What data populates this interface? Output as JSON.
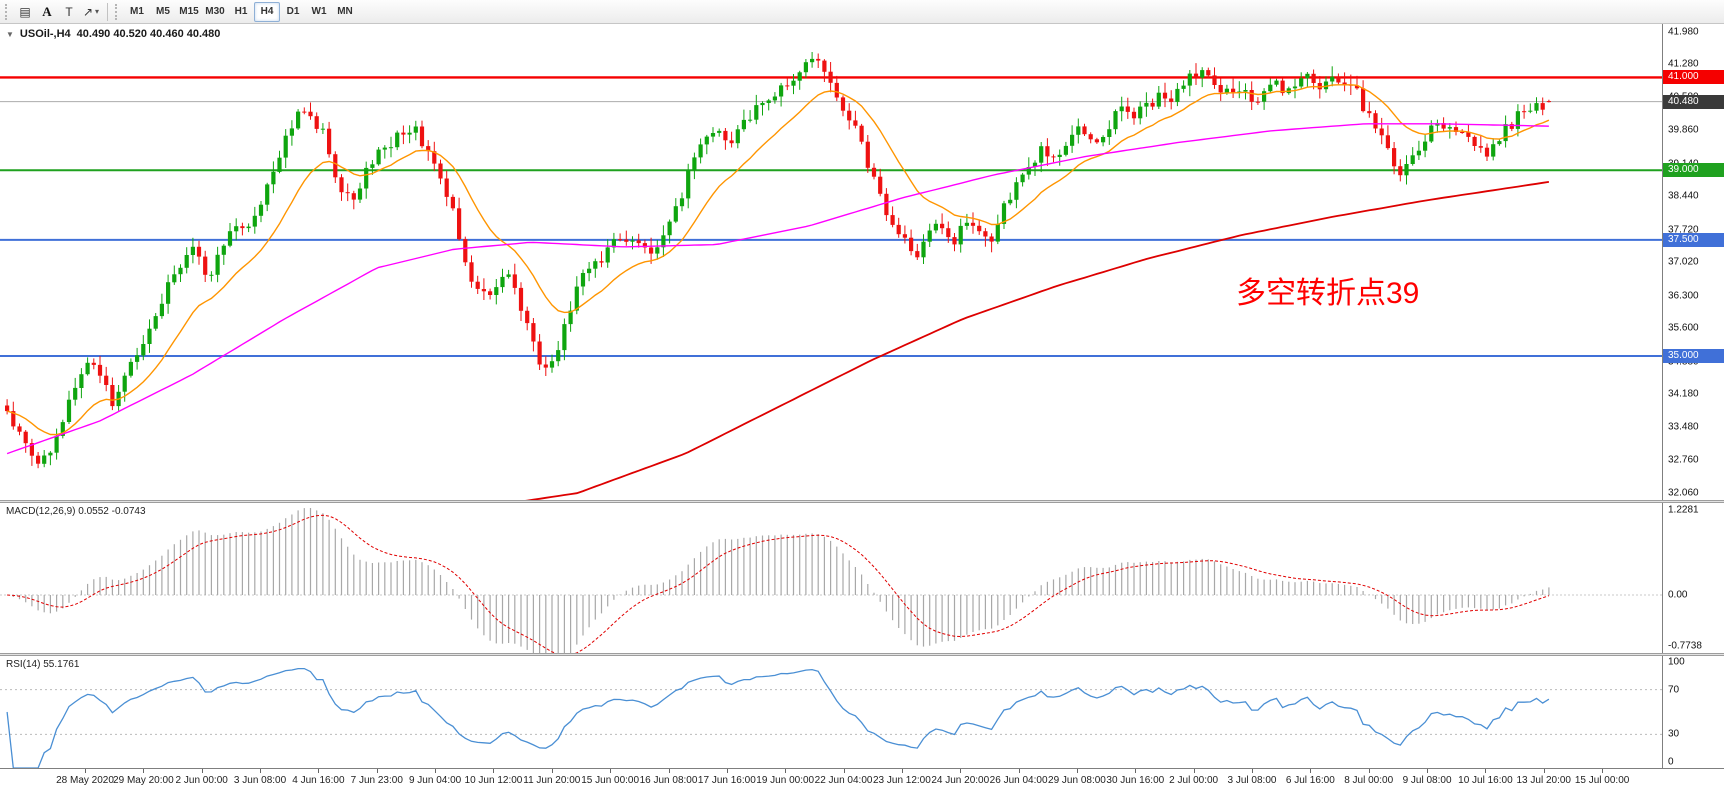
{
  "toolbar": {
    "tools": [
      {
        "name": "charts-icon",
        "glyph": "▤"
      },
      {
        "name": "text-label-icon",
        "glyph": "A"
      },
      {
        "name": "text-icon",
        "glyph": "T"
      },
      {
        "name": "arrow-tool-icon",
        "glyph": "↗"
      }
    ],
    "dropdown_caret": "▾",
    "timeframes": [
      "M1",
      "M5",
      "M15",
      "M30",
      "H1",
      "H4",
      "D1",
      "W1",
      "MN"
    ],
    "active_timeframe": "H4"
  },
  "chart": {
    "collapse_arrow": "▼",
    "symbol_title": "USOil-,H4",
    "ohlc": "40.490 40.520 40.460 40.480",
    "annotation": "多空转折点39",
    "annotation_color": "#FF0000",
    "y_ticks": [
      "41.980",
      "41.280",
      "40.580",
      "39.860",
      "39.140",
      "38.440",
      "37.720",
      "37.020",
      "36.300",
      "35.600",
      "34.880",
      "34.180",
      "33.480",
      "32.760",
      "32.060"
    ],
    "price_tags": [
      {
        "label": "41.000",
        "color": "#F50000"
      },
      {
        "label": "40.480",
        "color": "#3A3A3A"
      },
      {
        "label": "39.000",
        "color": "#1FA11F"
      },
      {
        "label": "37.500",
        "color": "#4070D8"
      },
      {
        "label": "35.000",
        "color": "#4070D8"
      }
    ],
    "hlines": [
      {
        "price": 41.0,
        "color": "#F50000",
        "width": 2.4
      },
      {
        "price": 39.0,
        "color": "#1FA11F",
        "width": 2
      },
      {
        "price": 37.5,
        "color": "#4070D8",
        "width": 2
      },
      {
        "price": 35.0,
        "color": "#4070D8",
        "width": 2
      }
    ],
    "bid_line": {
      "price": 40.48,
      "color": "#ABABAB"
    }
  },
  "macd": {
    "label": "MACD(12,26,9) 0.0552 -0.0743",
    "ticks": [
      "1.2281",
      "0.00",
      "-0.7738"
    ],
    "range": [
      -0.7738,
      1.2281
    ],
    "histogram_color": "#A8A8A8",
    "signal_color": "#E00000"
  },
  "rsi": {
    "label": "RSI(14) 55.1761",
    "ticks": [
      "100",
      "70",
      "30",
      "0"
    ],
    "levels": [
      70,
      30
    ],
    "range": [
      0,
      100
    ],
    "line_color": "#4A8FD4"
  },
  "time_axis": {
    "labels": [
      "28 May 2020",
      "29 May 20:00",
      "2 Jun 00:00",
      "3 Jun 08:00",
      "4 Jun 16:00",
      "7 Jun 23:00",
      "9 Jun 04:00",
      "10 Jun 12:00",
      "11 Jun 20:00",
      "15 Jun 00:00",
      "16 Jun 08:00",
      "17 Jun 16:00",
      "19 Jun 00:00",
      "22 Jun 04:00",
      "23 Jun 12:00",
      "24 Jun 20:00",
      "26 Jun 04:00",
      "29 Jun 08:00",
      "30 Jun 16:00",
      "2 Jul 00:00",
      "3 Jul 08:00",
      "6 Jul 16:00",
      "8 Jul 00:00",
      "9 Jul 08:00",
      "10 Jul 16:00",
      "13 Jul 20:00",
      "15 Jul 00:00"
    ]
  },
  "chart_data": {
    "type": "candlestick",
    "symbol": "USOil-",
    "timeframe": "H4",
    "current_ohlc": {
      "open": 40.49,
      "high": 40.52,
      "low": 40.46,
      "close": 40.48
    },
    "y_range_visible": [
      32.06,
      41.98
    ],
    "key_levels": [
      41.0,
      39.0,
      37.5,
      35.0
    ],
    "indicators": {
      "macd_value": 0.0552,
      "macd_signal_value": -0.0743,
      "rsi_value": 55.1761
    },
    "candle_count": 250,
    "colors": {
      "up": "#0FA50F",
      "down": "#EE1111",
      "ma_fast": "#FF9500",
      "ma_mid": "#FF00FF",
      "ma_slow": "#DD0000"
    },
    "price_path": [
      [
        0.0,
        33.8
      ],
      [
        0.01,
        33.2
      ],
      [
        0.019,
        32.6
      ],
      [
        0.03,
        33.1
      ],
      [
        0.04,
        33.9
      ],
      [
        0.052,
        35.0
      ],
      [
        0.061,
        34.6
      ],
      [
        0.068,
        34.0
      ],
      [
        0.078,
        34.7
      ],
      [
        0.087,
        35.3
      ],
      [
        0.096,
        35.9
      ],
      [
        0.104,
        36.5
      ],
      [
        0.113,
        37.0
      ],
      [
        0.12,
        37.4
      ],
      [
        0.129,
        36.6
      ],
      [
        0.138,
        37.2
      ],
      [
        0.146,
        37.8
      ],
      [
        0.155,
        37.9
      ],
      [
        0.162,
        38.0
      ],
      [
        0.169,
        38.6
      ],
      [
        0.175,
        39.3
      ],
      [
        0.183,
        39.8
      ],
      [
        0.191,
        40.3
      ],
      [
        0.198,
        40.1
      ],
      [
        0.204,
        39.9
      ],
      [
        0.21,
        39.2
      ],
      [
        0.216,
        38.7
      ],
      [
        0.227,
        38.4
      ],
      [
        0.236,
        39.2
      ],
      [
        0.249,
        39.6
      ],
      [
        0.257,
        39.8
      ],
      [
        0.264,
        39.9
      ],
      [
        0.272,
        39.5
      ],
      [
        0.278,
        39.1
      ],
      [
        0.284,
        38.7
      ],
      [
        0.29,
        38.0
      ],
      [
        0.296,
        37.2
      ],
      [
        0.304,
        36.5
      ],
      [
        0.311,
        36.3
      ],
      [
        0.317,
        36.4
      ],
      [
        0.324,
        36.8
      ],
      [
        0.329,
        36.4
      ],
      [
        0.335,
        35.9
      ],
      [
        0.341,
        35.2
      ],
      [
        0.347,
        34.8
      ],
      [
        0.353,
        34.7
      ],
      [
        0.358,
        35.2
      ],
      [
        0.364,
        35.9
      ],
      [
        0.37,
        36.4
      ],
      [
        0.377,
        36.9
      ],
      [
        0.384,
        37.1
      ],
      [
        0.39,
        37.3
      ],
      [
        0.397,
        37.5
      ],
      [
        0.403,
        37.6
      ],
      [
        0.41,
        37.3
      ],
      [
        0.417,
        37.1
      ],
      [
        0.424,
        37.5
      ],
      [
        0.43,
        37.9
      ],
      [
        0.437,
        38.4
      ],
      [
        0.443,
        39.0
      ],
      [
        0.45,
        39.5
      ],
      [
        0.457,
        39.9
      ],
      [
        0.463,
        39.7
      ],
      [
        0.469,
        39.6
      ],
      [
        0.476,
        39.9
      ],
      [
        0.482,
        40.2
      ],
      [
        0.489,
        40.4
      ],
      [
        0.495,
        40.6
      ],
      [
        0.502,
        40.8
      ],
      [
        0.508,
        41.0
      ],
      [
        0.515,
        41.1
      ],
      [
        0.521,
        41.3
      ],
      [
        0.527,
        41.4
      ],
      [
        0.533,
        41.0
      ],
      [
        0.539,
        40.6
      ],
      [
        0.545,
        40.2
      ],
      [
        0.551,
        39.8
      ],
      [
        0.557,
        39.3
      ],
      [
        0.562,
        38.8
      ],
      [
        0.568,
        38.3
      ],
      [
        0.573,
        37.9
      ],
      [
        0.579,
        37.6
      ],
      [
        0.585,
        37.3
      ],
      [
        0.59,
        37.1
      ],
      [
        0.596,
        37.6
      ],
      [
        0.601,
        37.9
      ],
      [
        0.607,
        37.6
      ],
      [
        0.613,
        37.3
      ],
      [
        0.618,
        37.7
      ],
      [
        0.624,
        38.0
      ],
      [
        0.63,
        37.8
      ],
      [
        0.635,
        37.5
      ],
      [
        0.641,
        37.6
      ],
      [
        0.647,
        38.2
      ],
      [
        0.653,
        38.7
      ],
      [
        0.659,
        38.9
      ],
      [
        0.665,
        39.2
      ],
      [
        0.671,
        39.4
      ],
      [
        0.676,
        39.1
      ],
      [
        0.682,
        39.3
      ],
      [
        0.688,
        39.6
      ],
      [
        0.694,
        39.9
      ],
      [
        0.7,
        39.7
      ],
      [
        0.706,
        39.5
      ],
      [
        0.712,
        39.8
      ],
      [
        0.718,
        40.1
      ],
      [
        0.724,
        40.3
      ],
      [
        0.73,
        40.1
      ],
      [
        0.736,
        40.3
      ],
      [
        0.742,
        40.5
      ],
      [
        0.748,
        40.6
      ],
      [
        0.753,
        40.4
      ],
      [
        0.759,
        40.7
      ],
      [
        0.765,
        40.9
      ],
      [
        0.771,
        41.0
      ],
      [
        0.777,
        41.1
      ],
      [
        0.782,
        40.8
      ],
      [
        0.788,
        40.6
      ],
      [
        0.794,
        40.8
      ],
      [
        0.8,
        40.7
      ],
      [
        0.806,
        40.5
      ],
      [
        0.812,
        40.6
      ],
      [
        0.818,
        40.8
      ],
      [
        0.824,
        40.9
      ],
      [
        0.83,
        40.7
      ],
      [
        0.835,
        40.8
      ],
      [
        0.841,
        40.9
      ],
      [
        0.847,
        41.0
      ],
      [
        0.853,
        40.8
      ],
      [
        0.859,
        40.9
      ],
      [
        0.865,
        40.8
      ],
      [
        0.871,
        40.9
      ],
      [
        0.876,
        40.6
      ],
      [
        0.882,
        40.3
      ],
      [
        0.888,
        39.9
      ],
      [
        0.894,
        39.5
      ],
      [
        0.9,
        39.1
      ],
      [
        0.905,
        38.9
      ],
      [
        0.911,
        39.2
      ],
      [
        0.917,
        39.5
      ],
      [
        0.923,
        39.8
      ],
      [
        0.929,
        40.0
      ],
      [
        0.935,
        40.1
      ],
      [
        0.941,
        39.9
      ],
      [
        0.947,
        39.7
      ],
      [
        0.952,
        39.5
      ],
      [
        0.958,
        39.3
      ],
      [
        0.964,
        39.6
      ],
      [
        0.97,
        39.8
      ],
      [
        0.976,
        40.0
      ],
      [
        0.982,
        40.2
      ],
      [
        0.988,
        40.3
      ],
      [
        0.994,
        40.4
      ],
      [
        1.0,
        40.48
      ]
    ],
    "ma_magenta_path": [
      [
        0,
        32.9
      ],
      [
        0.06,
        33.6
      ],
      [
        0.12,
        34.6
      ],
      [
        0.18,
        35.8
      ],
      [
        0.24,
        36.9
      ],
      [
        0.29,
        37.3
      ],
      [
        0.34,
        37.45
      ],
      [
        0.4,
        37.35
      ],
      [
        0.46,
        37.4
      ],
      [
        0.52,
        37.8
      ],
      [
        0.58,
        38.4
      ],
      [
        0.64,
        38.9
      ],
      [
        0.7,
        39.3
      ],
      [
        0.76,
        39.6
      ],
      [
        0.82,
        39.85
      ],
      [
        0.88,
        40.0
      ],
      [
        0.93,
        40.0
      ],
      [
        1,
        39.95
      ]
    ],
    "ma_red_path": [
      [
        0,
        30.2
      ],
      [
        0.1,
        30.8
      ],
      [
        0.2,
        31.3
      ],
      [
        0.3,
        31.7
      ],
      [
        0.37,
        32.05
      ],
      [
        0.44,
        32.9
      ],
      [
        0.5,
        33.9
      ],
      [
        0.56,
        34.9
      ],
      [
        0.62,
        35.8
      ],
      [
        0.68,
        36.5
      ],
      [
        0.74,
        37.1
      ],
      [
        0.8,
        37.6
      ],
      [
        0.86,
        38.0
      ],
      [
        0.92,
        38.35
      ],
      [
        1,
        38.75
      ]
    ]
  }
}
